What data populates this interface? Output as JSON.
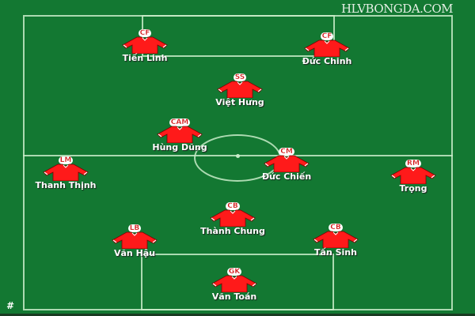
{
  "watermark": "HLVBONGDA.COM",
  "footer_mark": "#",
  "colors": {
    "pitch": "#137832",
    "lines": "#c8ebc8",
    "shirt": "#ff1a1a",
    "label": "#d01010"
  },
  "players": [
    {
      "position": "CF",
      "name": "Tiến Linh"
    },
    {
      "position": "CF",
      "name": "Đức Chinh"
    },
    {
      "position": "SS",
      "name": "Việt Hưng"
    },
    {
      "position": "CAM",
      "name": "Hùng Dũng"
    },
    {
      "position": "CM",
      "name": "Đức Chiến"
    },
    {
      "position": "LM",
      "name": "Thanh Thịnh"
    },
    {
      "position": "RM",
      "name": "Trọng"
    },
    {
      "position": "CB",
      "name": "Thành Chung"
    },
    {
      "position": "LB",
      "name": "Văn Hậu"
    },
    {
      "position": "CB",
      "name": "Tấn Sinh"
    },
    {
      "position": "GK",
      "name": "Văn Toán"
    }
  ]
}
